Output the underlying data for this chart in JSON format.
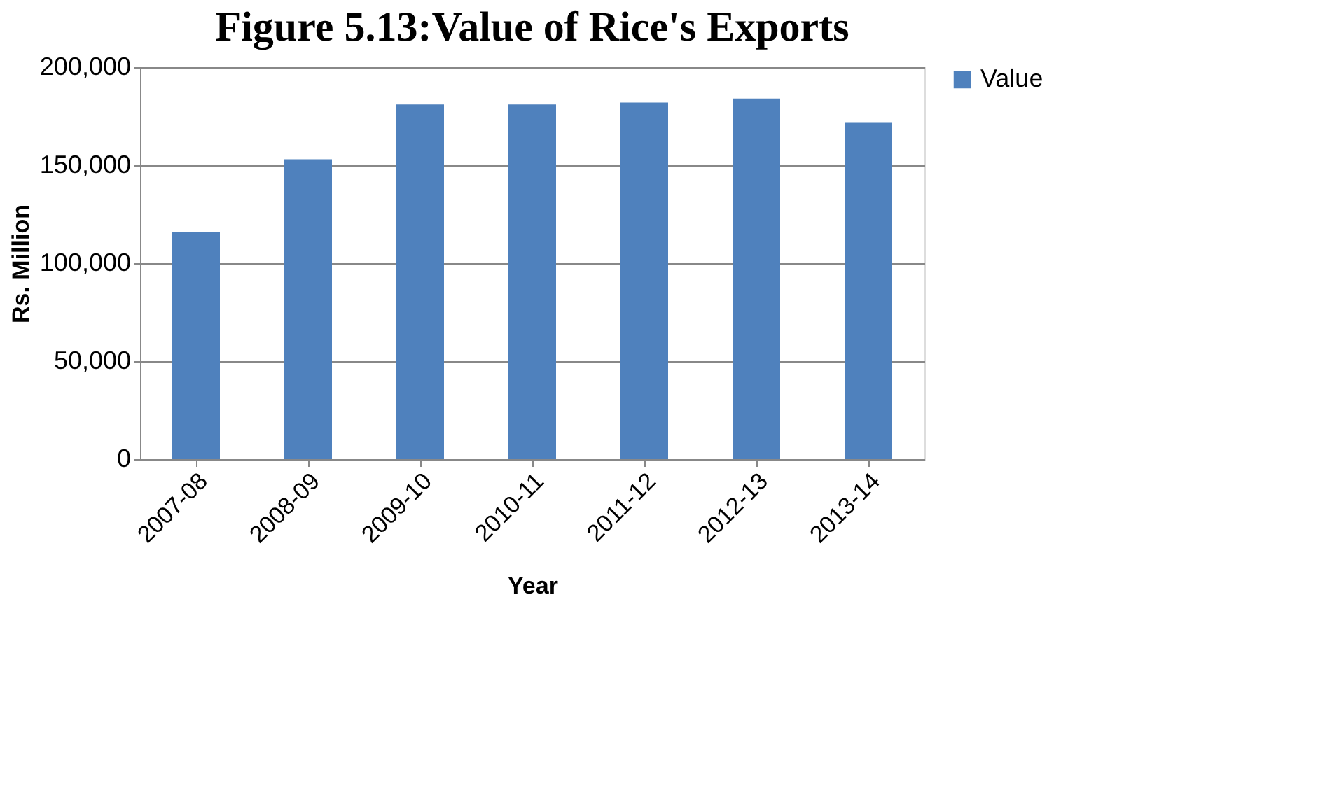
{
  "chart_data": {
    "type": "bar",
    "title": "Figure 5.13:Value of Rice's Exports",
    "xlabel": "Year",
    "ylabel": "Rs. Million",
    "categories": [
      "2007-08",
      "2008-09",
      "2009-10",
      "2010-11",
      "2011-12",
      "2012-13",
      "2013-14"
    ],
    "series": [
      {
        "name": "Value",
        "color": "#4f81bd",
        "values": [
          116000,
          153000,
          181000,
          181000,
          182000,
          184000,
          172000
        ]
      }
    ],
    "ylim": [
      0,
      200000
    ],
    "yticks": [
      {
        "value": 0,
        "label": "0"
      },
      {
        "value": 50000,
        "label": "50,000"
      },
      {
        "value": 100000,
        "label": "100,000"
      },
      {
        "value": 150000,
        "label": "150,000"
      },
      {
        "value": 200000,
        "label": "200,000"
      }
    ],
    "grid": "y",
    "legend": "right"
  }
}
